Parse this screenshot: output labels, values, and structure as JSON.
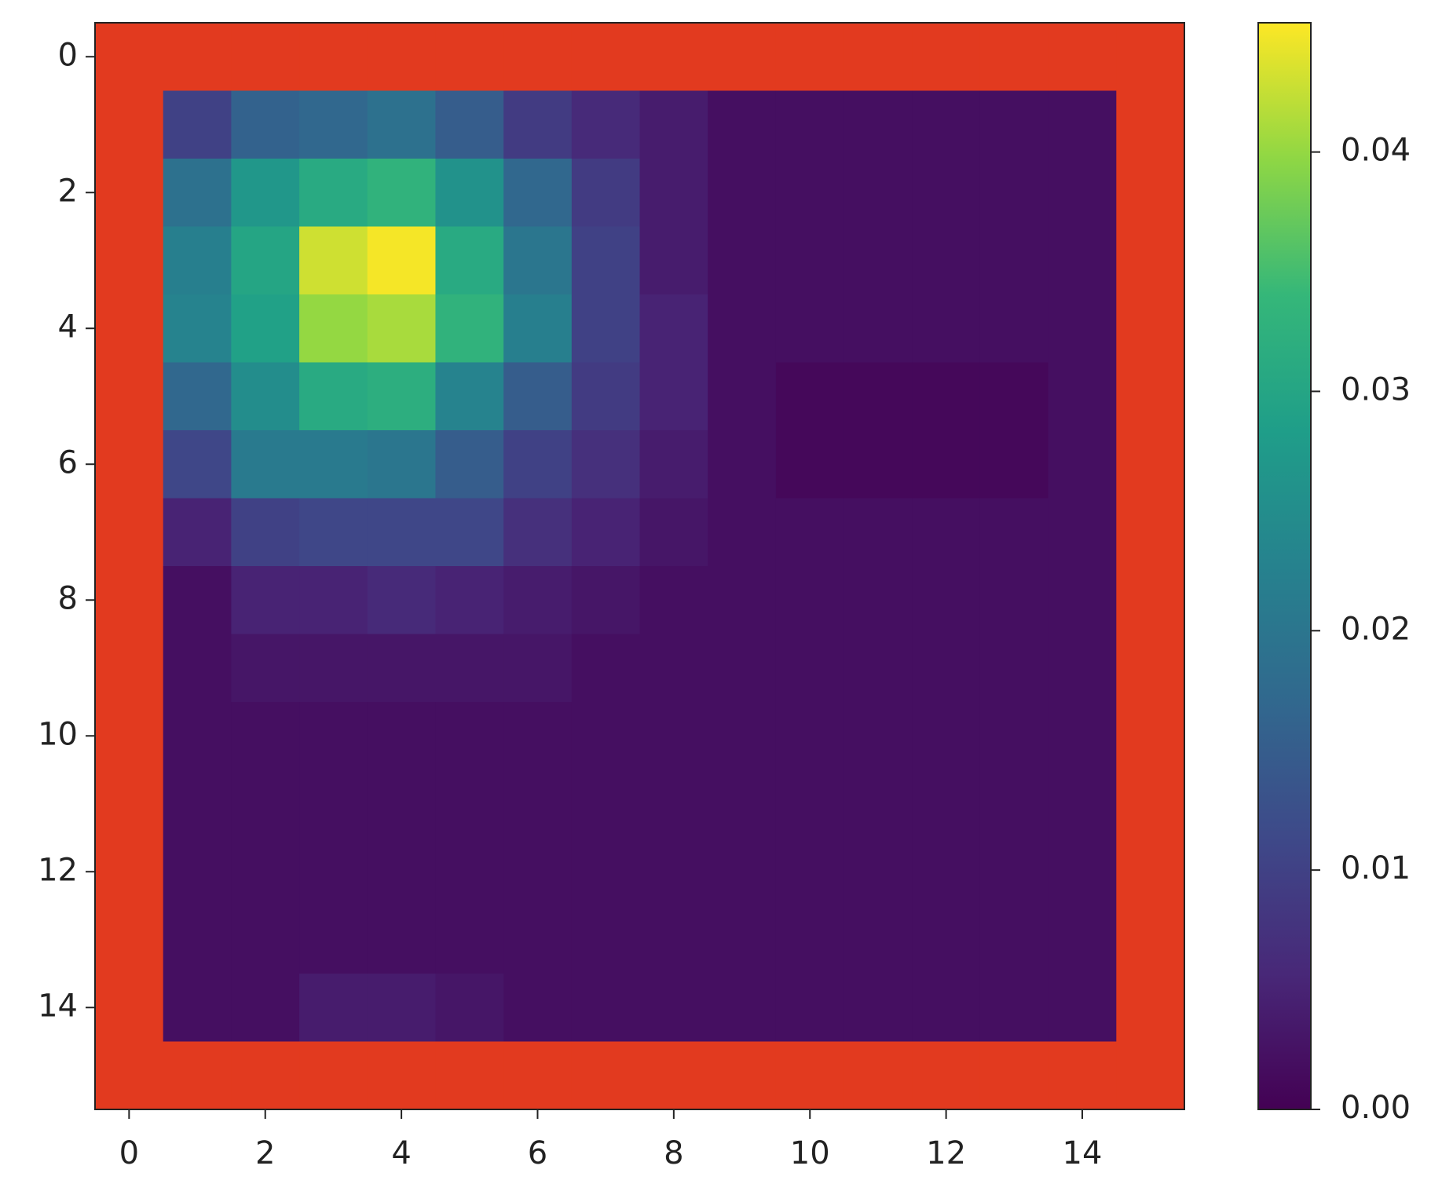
{
  "chart_data": {
    "type": "heatmap",
    "colormap": "viridis",
    "bad_color": "#e23a1f",
    "values": [
      [
        null,
        null,
        null,
        null,
        null,
        null,
        null,
        null,
        null,
        null,
        null,
        null,
        null,
        null,
        null,
        null
      ],
      [
        null,
        0.01,
        0.016,
        0.017,
        0.019,
        0.015,
        0.009,
        0.006,
        0.004,
        0.002,
        0.002,
        0.002,
        0.002,
        0.002,
        0.002,
        null
      ],
      [
        null,
        0.019,
        0.027,
        0.031,
        0.033,
        0.026,
        0.017,
        0.009,
        0.004,
        0.002,
        0.002,
        0.002,
        0.002,
        0.002,
        0.002,
        null
      ],
      [
        null,
        0.022,
        0.03,
        0.043,
        0.045,
        0.031,
        0.02,
        0.01,
        0.004,
        0.002,
        0.002,
        0.002,
        0.002,
        0.002,
        0.002,
        null
      ],
      [
        null,
        0.023,
        0.029,
        0.04,
        0.041,
        0.033,
        0.022,
        0.01,
        0.005,
        0.002,
        0.002,
        0.002,
        0.002,
        0.002,
        0.002,
        null
      ],
      [
        null,
        0.017,
        0.025,
        0.031,
        0.032,
        0.023,
        0.015,
        0.009,
        0.005,
        0.002,
        0.001,
        0.001,
        0.001,
        0.001,
        0.002,
        null
      ],
      [
        null,
        0.011,
        0.021,
        0.021,
        0.02,
        0.015,
        0.01,
        0.007,
        0.004,
        0.002,
        0.001,
        0.001,
        0.001,
        0.001,
        0.002,
        null
      ],
      [
        null,
        0.005,
        0.01,
        0.011,
        0.011,
        0.011,
        0.007,
        0.005,
        0.003,
        0.002,
        0.002,
        0.002,
        0.002,
        0.002,
        0.002,
        null
      ],
      [
        null,
        0.002,
        0.005,
        0.005,
        0.006,
        0.005,
        0.004,
        0.003,
        0.002,
        0.002,
        0.002,
        0.002,
        0.002,
        0.002,
        0.002,
        null
      ],
      [
        null,
        0.002,
        0.003,
        0.003,
        0.003,
        0.003,
        0.003,
        0.002,
        0.002,
        0.002,
        0.002,
        0.002,
        0.002,
        0.002,
        0.002,
        null
      ],
      [
        null,
        0.002,
        0.002,
        0.002,
        0.002,
        0.002,
        0.002,
        0.002,
        0.002,
        0.002,
        0.002,
        0.002,
        0.002,
        0.002,
        0.002,
        null
      ],
      [
        null,
        0.002,
        0.002,
        0.002,
        0.002,
        0.002,
        0.002,
        0.002,
        0.002,
        0.002,
        0.002,
        0.002,
        0.002,
        0.002,
        0.002,
        null
      ],
      [
        null,
        0.002,
        0.002,
        0.002,
        0.002,
        0.002,
        0.002,
        0.002,
        0.002,
        0.002,
        0.002,
        0.002,
        0.002,
        0.002,
        0.002,
        null
      ],
      [
        null,
        0.002,
        0.002,
        0.002,
        0.002,
        0.002,
        0.002,
        0.002,
        0.002,
        0.002,
        0.002,
        0.002,
        0.002,
        0.002,
        0.002,
        null
      ],
      [
        null,
        0.002,
        0.002,
        0.004,
        0.004,
        0.003,
        0.002,
        0.002,
        0.002,
        0.002,
        0.002,
        0.002,
        0.002,
        0.002,
        0.002,
        null
      ],
      [
        null,
        null,
        null,
        null,
        null,
        null,
        null,
        null,
        null,
        null,
        null,
        null,
        null,
        null,
        null,
        null
      ]
    ],
    "xlim": [
      -0.5,
      15.5
    ],
    "ylim": [
      15.5,
      -0.5
    ],
    "xticks": [
      0,
      2,
      4,
      6,
      8,
      10,
      12,
      14
    ],
    "yticks": [
      0,
      2,
      4,
      6,
      8,
      10,
      12,
      14
    ],
    "clim": [
      0,
      0.0454
    ],
    "cticks": [
      {
        "value": 0,
        "label": "0.00"
      },
      {
        "value": 0.01,
        "label": "0.01"
      },
      {
        "value": 0.02,
        "label": "0.02"
      },
      {
        "value": 0.03,
        "label": "0.03"
      },
      {
        "value": 0.04,
        "label": "0.04"
      }
    ]
  }
}
